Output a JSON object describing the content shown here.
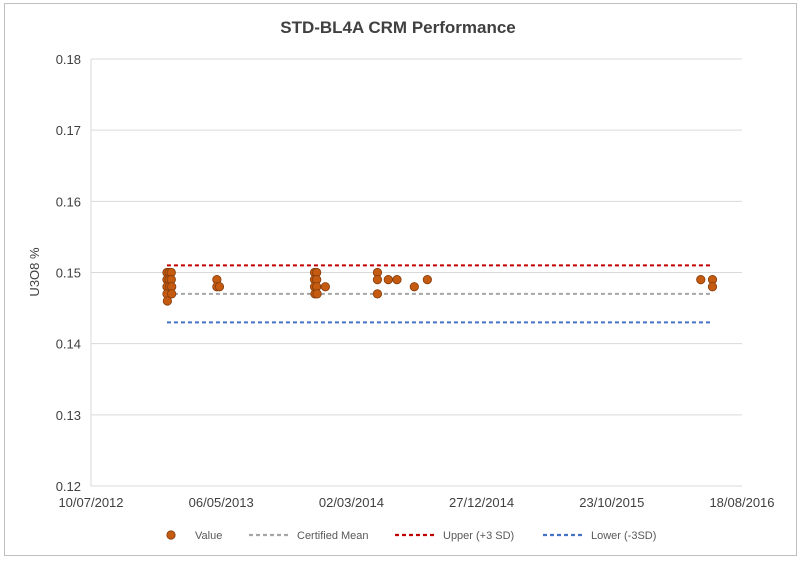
{
  "chart_data": {
    "type": "scatter",
    "title": "STD-BL4A CRM Performance",
    "xlabel": "",
    "ylabel": "U3O8 %",
    "ylim": [
      0.12,
      0.18
    ],
    "yticks": [
      "0.12",
      "0.13",
      "0.14",
      "0.15",
      "0.16",
      "0.17",
      "0.18"
    ],
    "yticks_values": [
      0.12,
      0.13,
      0.14,
      0.15,
      0.16,
      0.17,
      0.18
    ],
    "xlim_days": [
      0,
      1500
    ],
    "xticks": [
      "10/07/2012",
      "06/05/2013",
      "02/03/2014",
      "27/12/2014",
      "23/10/2015",
      "18/08/2016"
    ],
    "xticks_days": [
      0,
      300,
      600,
      900,
      1200,
      1500
    ],
    "grid": true,
    "legend_position": "bottom",
    "series": [
      {
        "name": "Value",
        "kind": "points",
        "color": "#c55a11",
        "points_days": [
          [
            175,
            0.15
          ],
          [
            175,
            0.149
          ],
          [
            175,
            0.148
          ],
          [
            175,
            0.147
          ],
          [
            176,
            0.146
          ],
          [
            180,
            0.15
          ],
          [
            180,
            0.149
          ],
          [
            181,
            0.148
          ],
          [
            185,
            0.15
          ],
          [
            185,
            0.149
          ],
          [
            186,
            0.148
          ],
          [
            186,
            0.147
          ],
          [
            290,
            0.149
          ],
          [
            290,
            0.148
          ],
          [
            296,
            0.148
          ],
          [
            515,
            0.15
          ],
          [
            515,
            0.149
          ],
          [
            515,
            0.148
          ],
          [
            516,
            0.147
          ],
          [
            520,
            0.15
          ],
          [
            520,
            0.149
          ],
          [
            520,
            0.148
          ],
          [
            521,
            0.147
          ],
          [
            540,
            0.148
          ],
          [
            660,
            0.15
          ],
          [
            660,
            0.149
          ],
          [
            660,
            0.147
          ],
          [
            685,
            0.149
          ],
          [
            705,
            0.149
          ],
          [
            745,
            0.148
          ],
          [
            775,
            0.149
          ],
          [
            1405,
            0.149
          ],
          [
            1432,
            0.149
          ],
          [
            1432,
            0.148
          ]
        ]
      },
      {
        "name": "Certified Mean",
        "kind": "dashed-line",
        "color": "#a6a6a6",
        "x_days": [
          175,
          1432
        ],
        "value": 0.147
      },
      {
        "name": "Upper (+3 SD)",
        "kind": "dashed-line",
        "color": "#c00000",
        "x_days": [
          175,
          1432
        ],
        "value": 0.151
      },
      {
        "name": "Lower (-3SD)",
        "kind": "dashed-line",
        "color": "#4472c4",
        "x_days": [
          175,
          1432
        ],
        "value": 0.143
      }
    ]
  }
}
